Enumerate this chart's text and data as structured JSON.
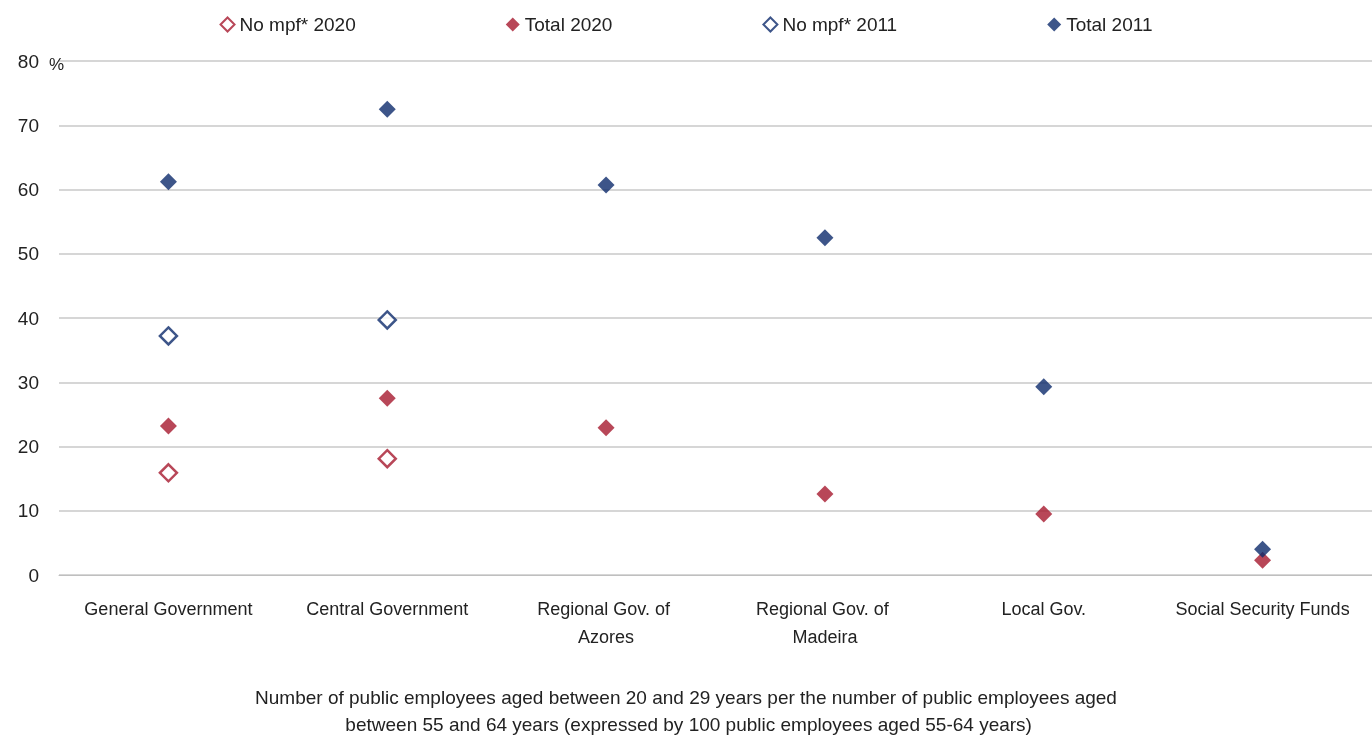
{
  "chart_data": {
    "type": "scatter",
    "xlabel": "Number of public employees aged between 20 and 29 years per the number of public employees aged between 55 and 64 years (expressed by 100 public employees aged 55-64 years)",
    "ylabel": "%",
    "categories": [
      "General Government",
      "Central Government",
      "Regional Gov. of Azores",
      "Regional Gov. of Madeira",
      "Local Gov.",
      "Social Security Funds"
    ],
    "series": [
      {
        "name": "No mpf* 2020",
        "color": "#a6192e",
        "marker": "diamond-open",
        "values": [
          15.9,
          18.1,
          null,
          null,
          null,
          null
        ]
      },
      {
        "name": "Total 2020",
        "color": "#a6192e",
        "values": [
          23.2,
          27.5,
          22.9,
          12.6,
          9.5,
          2.3
        ]
      },
      {
        "name": "No mpf* 2011",
        "color": "#0c2a6b",
        "marker": "diamond-open",
        "values": [
          37.2,
          39.7,
          null,
          null,
          null,
          null
        ]
      },
      {
        "name": "Total 2011",
        "color": "#0c2a6b",
        "values": [
          61.2,
          72.5,
          60.7,
          52.5,
          29.3,
          4.0
        ]
      }
    ],
    "ylim": [
      0,
      80
    ],
    "yticks": [
      0,
      10,
      20,
      30,
      40,
      50,
      60,
      70,
      80
    ],
    "grid": "y",
    "legend": "top",
    "marker": "diamond"
  }
}
